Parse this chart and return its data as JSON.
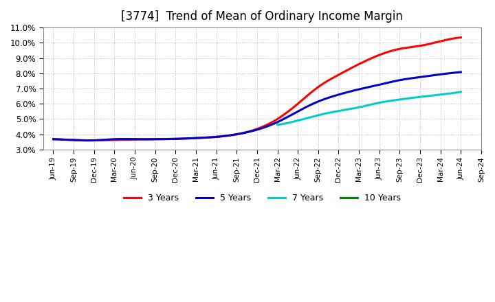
{
  "title": "[3774]  Trend of Mean of Ordinary Income Margin",
  "ylim": [
    0.03,
    0.11
  ],
  "yticks": [
    0.03,
    0.04,
    0.05,
    0.06,
    0.07,
    0.08,
    0.09,
    0.1,
    0.11
  ],
  "ytick_labels": [
    "3.0%",
    "4.0%",
    "5.0%",
    "6.0%",
    "7.0%",
    "8.0%",
    "9.0%",
    "10.0%",
    "11.0%"
  ],
  "x_labels": [
    "Jun-19",
    "Sep-19",
    "Dec-19",
    "Mar-20",
    "Jun-20",
    "Sep-20",
    "Dec-20",
    "Mar-21",
    "Jun-21",
    "Sep-21",
    "Dec-21",
    "Mar-22",
    "Jun-22",
    "Sep-22",
    "Dec-22",
    "Mar-23",
    "Jun-23",
    "Sep-23",
    "Dec-23",
    "Mar-24",
    "Jun-24",
    "Sep-24"
  ],
  "series_3y_x": [
    0,
    1,
    2,
    3,
    4,
    5,
    6,
    7,
    8,
    9,
    10,
    11,
    12,
    13,
    14,
    15,
    16,
    17,
    18,
    19,
    20
  ],
  "series_3y_y": [
    0.0368,
    0.0362,
    0.036,
    0.0363,
    0.0365,
    0.0367,
    0.037,
    0.0375,
    0.0383,
    0.04,
    0.0435,
    0.05,
    0.06,
    0.071,
    0.079,
    0.086,
    0.092,
    0.096,
    0.098,
    0.101,
    0.1035
  ],
  "series_5y_x": [
    0,
    1,
    2,
    3,
    4,
    5,
    6,
    7,
    8,
    9,
    10,
    11,
    12,
    13,
    14,
    15,
    16,
    17,
    18,
    19,
    20
  ],
  "series_5y_y": [
    0.0368,
    0.0362,
    0.036,
    0.0368,
    0.0368,
    0.0368,
    0.037,
    0.0375,
    0.0383,
    0.04,
    0.043,
    0.048,
    0.055,
    0.0615,
    0.066,
    0.0695,
    0.0725,
    0.0755,
    0.0775,
    0.0793,
    0.0808
  ],
  "series_7y_x": [
    11,
    12,
    13,
    14,
    15,
    16,
    17,
    18,
    19,
    20
  ],
  "series_7y_y": [
    0.0462,
    0.049,
    0.0525,
    0.0553,
    0.0577,
    0.0607,
    0.0628,
    0.0645,
    0.066,
    0.0678
  ],
  "series_10y_x": [],
  "series_10y_y": [],
  "background_color": "#FFFFFF",
  "plot_bg_color": "#FFFFFF",
  "grid_color": "#AAAAAA",
  "title_fontsize": 12,
  "legend_items": [
    "3 Years",
    "5 Years",
    "7 Years",
    "10 Years"
  ],
  "legend_colors": [
    "#FF0000",
    "#0000CD",
    "#00CCCC",
    "#008000"
  ],
  "color_3y": "#FF0000",
  "color_5y": "#0000CD",
  "color_7y": "#00CCCC",
  "color_10y": "#008000"
}
